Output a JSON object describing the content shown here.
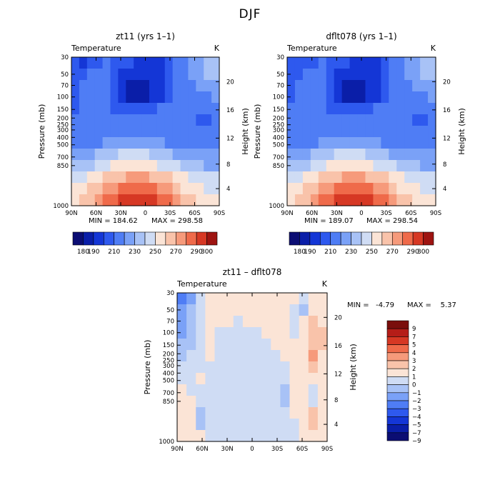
{
  "figure_title": "DJF",
  "chart_data": [
    {
      "type": "heatmap",
      "title": "zt11 (yrs 1–1)",
      "variable": "Temperature",
      "units": "K",
      "xlabel": "",
      "ylabel": "Pressure (mb)",
      "y2label": "Height (km)",
      "x_ticks": [
        "90N",
        "60N",
        "30N",
        "0",
        "30S",
        "60S",
        "90S"
      ],
      "y_ticks": [
        "30",
        "50",
        "70",
        "100",
        "150",
        "200",
        "250",
        "300",
        "400",
        "500",
        "700",
        "850",
        "1000"
      ],
      "y2_ticks": [
        "20",
        "16",
        "12",
        "8",
        "4"
      ],
      "log_pressure_axis": true,
      "min_label": "MIN = 184.62",
      "max_label": "MAX = 298.58",
      "min": 184.62,
      "max": 298.58,
      "colorbar_ticks": [
        "180",
        "190",
        "210",
        "230",
        "250",
        "270",
        "290",
        "300"
      ],
      "colorbar_levels": [
        180,
        190,
        200,
        210,
        220,
        230,
        240,
        250,
        260,
        270,
        280,
        290,
        300
      ],
      "colorbar_colors": [
        "#0b0d73",
        "#0a1ea8",
        "#1436d6",
        "#2e59ee",
        "#4f7df5",
        "#7aa1f7",
        "#a8c2f6",
        "#cfdcf4",
        "#fbe4d6",
        "#f9c3aa",
        "#f69a7b",
        "#ef6a4a",
        "#d63824",
        "#9e1411"
      ],
      "temp_field": [
        [
          200,
          196,
          200,
          208,
          212,
          208,
          204,
          200,
          196,
          192,
          192,
          196,
          204,
          212,
          216,
          220,
          228,
          232,
          236
        ],
        [
          202,
          206,
          212,
          216,
          214,
          202,
          196,
          192,
          190,
          190,
          192,
          196,
          206,
          214,
          216,
          220,
          226,
          230,
          234
        ],
        [
          204,
          210,
          214,
          216,
          214,
          200,
          192,
          188,
          186,
          188,
          192,
          196,
          206,
          214,
          216,
          218,
          220,
          224,
          228
        ],
        [
          206,
          210,
          212,
          214,
          212,
          200,
          192,
          188,
          186,
          188,
          192,
          198,
          208,
          214,
          216,
          216,
          214,
          216,
          220
        ],
        [
          208,
          210,
          212,
          214,
          214,
          208,
          204,
          200,
          200,
          204,
          208,
          212,
          214,
          214,
          214,
          212,
          210,
          210,
          212
        ],
        [
          210,
          212,
          212,
          212,
          214,
          214,
          214,
          214,
          214,
          214,
          214,
          214,
          214,
          214,
          214,
          210,
          208,
          208,
          210
        ],
        [
          212,
          213,
          214,
          214,
          215,
          216,
          216,
          216,
          216,
          216,
          216,
          215,
          214,
          214,
          214,
          212,
          210,
          210,
          212
        ],
        [
          214,
          215,
          216,
          218,
          220,
          222,
          224,
          224,
          224,
          224,
          222,
          220,
          218,
          216,
          215,
          214,
          214,
          214,
          215
        ],
        [
          222,
          224,
          228,
          232,
          236,
          238,
          240,
          240,
          240,
          240,
          238,
          236,
          232,
          228,
          226,
          224,
          222,
          220,
          220
        ],
        [
          230,
          232,
          238,
          244,
          248,
          250,
          252,
          252,
          252,
          252,
          250,
          248,
          244,
          240,
          236,
          232,
          230,
          228,
          226
        ],
        [
          244,
          248,
          252,
          258,
          262,
          266,
          268,
          270,
          270,
          270,
          268,
          266,
          262,
          256,
          250,
          246,
          244,
          242,
          240
        ],
        [
          252,
          256,
          262,
          268,
          274,
          278,
          282,
          284,
          284,
          284,
          282,
          278,
          272,
          264,
          258,
          254,
          250,
          248,
          246
        ],
        [
          256,
          260,
          268,
          276,
          282,
          288,
          292,
          294,
          294,
          294,
          292,
          288,
          282,
          274,
          266,
          260,
          256,
          252,
          250
        ]
      ]
    },
    {
      "type": "heatmap",
      "title": "dflt078 (yrs 1–1)",
      "variable": "Temperature",
      "units": "K",
      "xlabel": "",
      "ylabel": "Pressure (mb)",
      "y2label": "Height (km)",
      "x_ticks": [
        "90N",
        "60N",
        "30N",
        "0",
        "30S",
        "60S",
        "90S"
      ],
      "y_ticks": [
        "30",
        "50",
        "70",
        "100",
        "150",
        "200",
        "250",
        "300",
        "400",
        "500",
        "700",
        "850",
        "1000"
      ],
      "y2_ticks": [
        "20",
        "16",
        "12",
        "8",
        "4"
      ],
      "log_pressure_axis": true,
      "min_label": "MIN = 189.07",
      "max_label": "MAX = 298.54",
      "min": 189.07,
      "max": 298.54,
      "colorbar_ticks": [
        "180",
        "190",
        "210",
        "230",
        "250",
        "270",
        "290",
        "300"
      ],
      "colorbar_levels": [
        180,
        190,
        200,
        210,
        220,
        230,
        240,
        250,
        260,
        270,
        280,
        290,
        300
      ],
      "colorbar_colors": [
        "#0b0d73",
        "#0a1ea8",
        "#1436d6",
        "#2e59ee",
        "#4f7df5",
        "#7aa1f7",
        "#a8c2f6",
        "#cfdcf4",
        "#fbe4d6",
        "#f9c3aa",
        "#f69a7b",
        "#ef6a4a",
        "#d63824",
        "#9e1411"
      ],
      "temp_field": [
        [
          204,
          200,
          202,
          208,
          212,
          208,
          204,
          200,
          196,
          192,
          192,
          196,
          204,
          212,
          216,
          220,
          228,
          232,
          236
        ],
        [
          204,
          206,
          212,
          216,
          214,
          202,
          196,
          192,
          190,
          190,
          192,
          196,
          206,
          214,
          216,
          220,
          226,
          230,
          234
        ],
        [
          206,
          210,
          214,
          216,
          214,
          200,
          192,
          188,
          186,
          188,
          192,
          196,
          206,
          214,
          216,
          218,
          220,
          224,
          228
        ],
        [
          208,
          210,
          212,
          214,
          212,
          200,
          192,
          188,
          186,
          188,
          192,
          198,
          208,
          214,
          216,
          216,
          214,
          216,
          220
        ],
        [
          210,
          210,
          212,
          214,
          214,
          208,
          204,
          200,
          200,
          204,
          208,
          212,
          214,
          214,
          214,
          212,
          210,
          210,
          212
        ],
        [
          210,
          212,
          212,
          212,
          214,
          214,
          214,
          214,
          214,
          214,
          214,
          214,
          214,
          214,
          214,
          210,
          208,
          208,
          210
        ],
        [
          212,
          213,
          214,
          214,
          215,
          216,
          216,
          216,
          216,
          216,
          216,
          215,
          214,
          214,
          214,
          212,
          210,
          210,
          212
        ],
        [
          214,
          215,
          216,
          218,
          220,
          222,
          224,
          224,
          224,
          224,
          222,
          220,
          218,
          216,
          215,
          214,
          214,
          214,
          215
        ],
        [
          222,
          224,
          228,
          232,
          236,
          238,
          240,
          240,
          240,
          240,
          238,
          236,
          232,
          228,
          226,
          224,
          222,
          220,
          220
        ],
        [
          230,
          232,
          238,
          244,
          248,
          250,
          252,
          252,
          252,
          252,
          250,
          248,
          244,
          240,
          236,
          232,
          230,
          228,
          226
        ],
        [
          244,
          248,
          252,
          258,
          262,
          266,
          268,
          270,
          270,
          270,
          268,
          266,
          262,
          256,
          250,
          246,
          244,
          242,
          240
        ],
        [
          252,
          256,
          262,
          268,
          274,
          278,
          282,
          284,
          284,
          284,
          282,
          278,
          272,
          264,
          258,
          254,
          250,
          248,
          246
        ],
        [
          256,
          260,
          268,
          276,
          282,
          288,
          292,
          294,
          294,
          294,
          292,
          288,
          282,
          274,
          266,
          260,
          256,
          252,
          250
        ]
      ]
    },
    {
      "type": "heatmap",
      "title": "zt11 – dflt078",
      "variable": "Temperature",
      "units": "K",
      "xlabel": "",
      "ylabel": "Pressure (mb)",
      "y2label": "Height (km)",
      "x_ticks": [
        "90N",
        "60N",
        "30N",
        "0",
        "30S",
        "60S",
        "90S"
      ],
      "y_ticks": [
        "30",
        "50",
        "70",
        "100",
        "150",
        "200",
        "250",
        "300",
        "400",
        "500",
        "700",
        "850",
        "1000"
      ],
      "y2_ticks": [
        "20",
        "16",
        "12",
        "8",
        "4"
      ],
      "log_pressure_axis": true,
      "min_label": "MIN =   -4.79",
      "max_label": "MAX =    5.37",
      "min": -4.79,
      "max": 5.37,
      "colorbar_ticks": [
        "9",
        "7",
        "5",
        "4",
        "3",
        "2",
        "1",
        "0",
        "−1",
        "−2",
        "−3",
        "−4",
        "−5",
        "−7",
        "−9"
      ],
      "colorbar_levels": [
        -9,
        -7,
        -5,
        -4,
        -3,
        -2,
        -1,
        0,
        1,
        2,
        3,
        4,
        5,
        7,
        9
      ],
      "colorbar_colors": [
        "#0b0d73",
        "#0a1ea8",
        "#1436d6",
        "#2e59ee",
        "#4f7df5",
        "#7aa1f7",
        "#a8c2f6",
        "#cfdcf4",
        "#fbe4d6",
        "#f9c3aa",
        "#f69a7b",
        "#ef6a4a",
        "#d63824",
        "#b51d18",
        "#7a0e0c"
      ],
      "diff_field": [
        [
          -4.0,
          -2.5,
          -0.5,
          0.3,
          0.3,
          0.3,
          0.3,
          0.3,
          0.3,
          0.3,
          0.3,
          0.3,
          0.3,
          -0.5,
          0.3,
          0.3
        ],
        [
          -3.0,
          -2.0,
          -0.5,
          0.3,
          0.3,
          0.3,
          0.3,
          0.3,
          0.3,
          0.3,
          0.3,
          0.3,
          -0.5,
          -1.5,
          0.5,
          0.5
        ],
        [
          -2.5,
          -1.8,
          -0.5,
          0.3,
          0.3,
          0.3,
          -0.5,
          0.3,
          0.3,
          0.3,
          0.3,
          0.3,
          -0.5,
          0.5,
          1.5,
          0.5
        ],
        [
          -2.5,
          -1.5,
          -0.5,
          0.3,
          -0.5,
          -0.5,
          -0.5,
          -0.5,
          -0.5,
          0.3,
          0.3,
          0.3,
          -0.5,
          0.5,
          1.5,
          1.0
        ],
        [
          -2.0,
          -1.5,
          -0.5,
          0.3,
          -0.5,
          -0.5,
          -0.5,
          -0.5,
          -0.5,
          -0.5,
          0.3,
          0.3,
          0.3,
          0.5,
          1.5,
          1.0
        ],
        [
          -1.8,
          -1.0,
          -0.5,
          0.3,
          -0.5,
          -0.5,
          -0.5,
          -0.5,
          -0.5,
          -0.5,
          -0.5,
          0.3,
          0.3,
          0.5,
          2.5,
          0.5
        ],
        [
          -0.5,
          -0.5,
          -0.5,
          -0.5,
          -0.5,
          -0.5,
          -0.5,
          -0.5,
          -0.5,
          -0.5,
          -0.5,
          -0.5,
          0.3,
          0.5,
          1.0,
          0.3
        ],
        [
          -0.5,
          -0.5,
          0.3,
          -0.5,
          -0.5,
          -0.5,
          -0.5,
          -0.5,
          -0.5,
          -0.5,
          -0.5,
          -0.5,
          0.3,
          0.3,
          0.3,
          0.3
        ],
        [
          0.3,
          -0.5,
          -0.5,
          -0.5,
          -0.5,
          -0.5,
          -0.5,
          -0.5,
          -0.5,
          -0.5,
          -0.5,
          -1.5,
          0.3,
          0.3,
          -0.5,
          0.3
        ],
        [
          0.3,
          0.5,
          -0.5,
          -0.5,
          -0.5,
          -0.5,
          -0.5,
          -0.5,
          -0.5,
          -0.5,
          -0.5,
          -1.5,
          0.3,
          0.3,
          -0.5,
          0.3
        ],
        [
          0.3,
          0.5,
          -1.5,
          -0.5,
          -0.5,
          -0.5,
          -0.5,
          -0.5,
          -0.5,
          -0.5,
          -0.5,
          -0.5,
          0.3,
          0.5,
          1.0,
          0.3
        ],
        [
          0.3,
          0.5,
          -1.5,
          -0.5,
          -0.5,
          -0.5,
          -0.5,
          -0.5,
          -0.5,
          -0.5,
          -0.5,
          -0.5,
          -0.5,
          0.5,
          1.0,
          0.3
        ],
        [
          0.3,
          0.5,
          0.3,
          -0.5,
          -0.5,
          -0.5,
          -0.5,
          -0.5,
          -0.5,
          -0.5,
          -0.5,
          -0.5,
          -0.5,
          0.3,
          0.5,
          0.3
        ]
      ]
    }
  ]
}
